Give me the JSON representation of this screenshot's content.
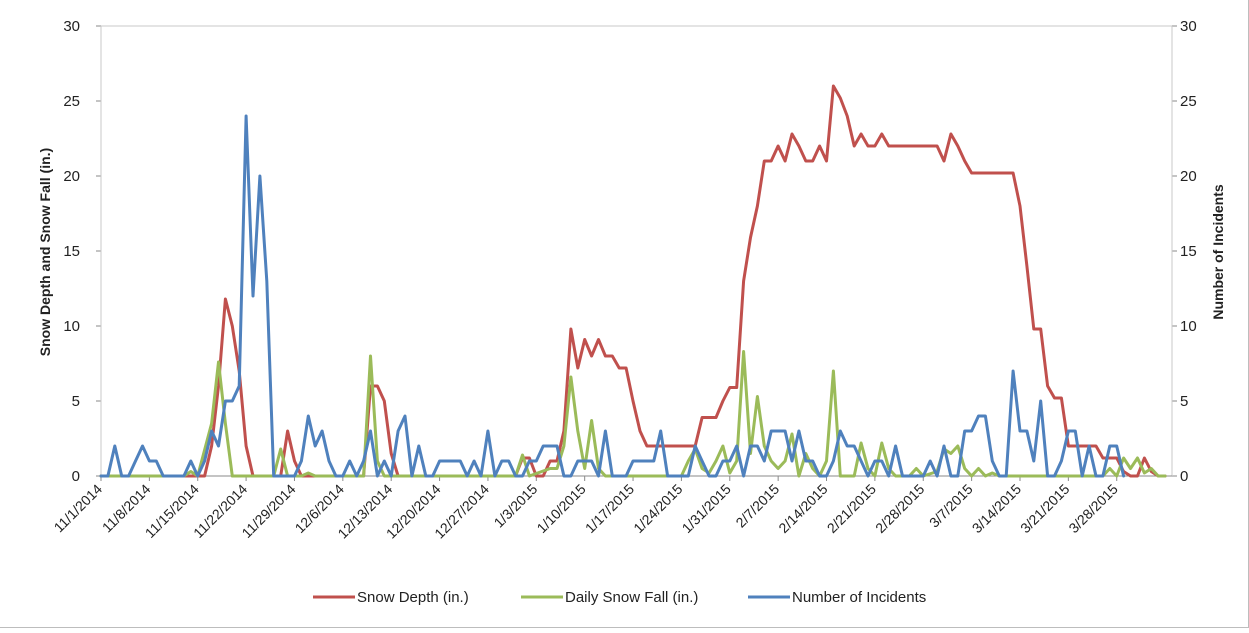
{
  "chart_data": {
    "type": "line",
    "title": "",
    "ylabel_left": "Snow Depth and Snow Fall (in.)",
    "ylabel_right": "Number of Incidents",
    "ylim_left": [
      0,
      30
    ],
    "ylim_right": [
      0,
      30
    ],
    "y_ticks_left": [
      "0",
      "5",
      "10",
      "15",
      "20",
      "25",
      "30"
    ],
    "y_ticks_right": [
      "0",
      "5",
      "10",
      "15",
      "20",
      "25",
      "30"
    ],
    "x_tick_labels": [
      "11/1/2014",
      "11/8/2014",
      "11/15/2014",
      "11/22/2014",
      "11/29/2014",
      "12/6/2014",
      "12/13/2014",
      "12/20/2014",
      "12/27/2014",
      "1/3/2015",
      "1/10/2015",
      "1/17/2015",
      "1/24/2015",
      "1/31/2015",
      "2/7/2015",
      "2/14/2015",
      "2/21/2015",
      "2/28/2015",
      "3/7/2015",
      "3/14/2015",
      "3/21/2015",
      "3/28/2015"
    ],
    "legend_position": "bottom",
    "grid": false,
    "series": [
      {
        "name": "Snow Depth (in.)",
        "axis": "left",
        "color": "#c0504d",
        "points": [
          [
            0,
            0
          ],
          [
            15,
            0
          ],
          [
            16,
            2
          ],
          [
            17,
            6
          ],
          [
            18,
            11.8
          ],
          [
            19,
            10
          ],
          [
            20,
            7
          ],
          [
            21,
            2
          ],
          [
            22,
            0
          ],
          [
            26,
            0
          ],
          [
            27,
            3
          ],
          [
            28,
            1
          ],
          [
            29,
            0
          ],
          [
            38,
            0
          ],
          [
            39,
            6
          ],
          [
            40,
            6
          ],
          [
            41,
            5
          ],
          [
            42,
            1.5
          ],
          [
            43,
            0
          ],
          [
            60,
            0
          ],
          [
            61,
            1.2
          ],
          [
            62,
            1.2
          ],
          [
            63,
            0
          ],
          [
            64,
            0
          ],
          [
            65,
            1
          ],
          [
            66,
            1
          ],
          [
            67,
            3
          ],
          [
            68,
            9.8
          ],
          [
            69,
            7.2
          ],
          [
            70,
            9.1
          ],
          [
            71,
            8
          ],
          [
            72,
            9.1
          ],
          [
            73,
            8
          ],
          [
            74,
            8
          ],
          [
            75,
            7.2
          ],
          [
            76,
            7.2
          ],
          [
            77,
            5
          ],
          [
            78,
            3
          ],
          [
            79,
            2
          ],
          [
            86,
            2
          ],
          [
            87,
            3.9
          ],
          [
            88,
            3.9
          ],
          [
            89,
            3.9
          ],
          [
            90,
            5
          ],
          [
            91,
            5.9
          ],
          [
            92,
            5.9
          ],
          [
            93,
            13
          ],
          [
            94,
            15.9
          ],
          [
            95,
            18
          ],
          [
            96,
            21
          ],
          [
            97,
            21
          ],
          [
            98,
            22
          ],
          [
            99,
            21
          ],
          [
            100,
            22.8
          ],
          [
            101,
            22
          ],
          [
            102,
            21
          ],
          [
            103,
            21
          ],
          [
            104,
            22
          ],
          [
            105,
            21
          ],
          [
            106,
            26
          ],
          [
            107,
            25.2
          ],
          [
            108,
            24
          ],
          [
            109,
            22
          ],
          [
            110,
            22.8
          ],
          [
            111,
            22
          ],
          [
            112,
            22
          ],
          [
            113,
            22.8
          ],
          [
            114,
            22
          ],
          [
            121,
            22
          ],
          [
            122,
            21
          ],
          [
            123,
            22.8
          ],
          [
            124,
            22
          ],
          [
            125,
            21
          ],
          [
            126,
            20.2
          ],
          [
            132,
            20.2
          ],
          [
            133,
            18
          ],
          [
            134,
            14
          ],
          [
            135,
            9.8
          ],
          [
            136,
            9.8
          ],
          [
            137,
            6
          ],
          [
            138,
            5.2
          ],
          [
            139,
            5.2
          ],
          [
            140,
            2
          ],
          [
            141,
            2
          ],
          [
            142,
            2
          ],
          [
            143,
            2
          ],
          [
            144,
            2
          ],
          [
            145,
            1.2
          ],
          [
            146,
            1.2
          ],
          [
            147,
            1.2
          ],
          [
            148,
            0.3
          ],
          [
            149,
            0
          ],
          [
            150,
            0
          ],
          [
            151,
            1.2
          ],
          [
            152,
            0.3
          ],
          [
            153,
            0
          ],
          [
            154,
            0
          ]
        ]
      },
      {
        "name": "Daily Snow Fall (in.)",
        "axis": "left",
        "color": "#9bbb59",
        "points": [
          [
            0,
            0
          ],
          [
            12,
            0
          ],
          [
            13,
            0.3
          ],
          [
            14,
            0
          ],
          [
            16,
            3.5
          ],
          [
            17,
            7.6
          ],
          [
            18,
            3.5
          ],
          [
            19,
            0
          ],
          [
            25,
            0
          ],
          [
            26,
            1.8
          ],
          [
            27,
            0
          ],
          [
            29,
            0
          ],
          [
            30,
            0.2
          ],
          [
            31,
            0
          ],
          [
            38,
            0
          ],
          [
            39,
            8
          ],
          [
            40,
            1
          ],
          [
            41,
            0
          ],
          [
            60,
            0
          ],
          [
            61,
            1.4
          ],
          [
            62,
            0
          ],
          [
            65,
            0.5
          ],
          [
            66,
            0.5
          ],
          [
            67,
            2
          ],
          [
            68,
            6.6
          ],
          [
            69,
            3
          ],
          [
            70,
            0.5
          ],
          [
            71,
            3.7
          ],
          [
            72,
            0.5
          ],
          [
            73,
            0
          ],
          [
            84,
            0
          ],
          [
            85,
            1
          ],
          [
            86,
            1.8
          ],
          [
            87,
            0.5
          ],
          [
            88,
            0.2
          ],
          [
            89,
            1
          ],
          [
            90,
            2
          ],
          [
            91,
            0.2
          ],
          [
            92,
            1
          ],
          [
            93,
            8.3
          ],
          [
            94,
            1.5
          ],
          [
            95,
            5.3
          ],
          [
            96,
            2
          ],
          [
            97,
            1
          ],
          [
            98,
            0.5
          ],
          [
            99,
            1
          ],
          [
            100,
            2.8
          ],
          [
            101,
            0
          ],
          [
            102,
            1.5
          ],
          [
            103,
            0.5
          ],
          [
            104,
            0
          ],
          [
            105,
            1
          ],
          [
            106,
            7
          ],
          [
            107,
            0
          ],
          [
            109,
            0
          ],
          [
            110,
            2.2
          ],
          [
            111,
            0.5
          ],
          [
            112,
            0
          ],
          [
            113,
            2.2
          ],
          [
            114,
            0.5
          ],
          [
            115,
            0
          ],
          [
            117,
            0
          ],
          [
            118,
            0.5
          ],
          [
            119,
            0
          ],
          [
            121,
            0.3
          ],
          [
            122,
            1.8
          ],
          [
            123,
            1.5
          ],
          [
            124,
            2
          ],
          [
            125,
            0.5
          ],
          [
            126,
            0
          ],
          [
            127,
            0.5
          ],
          [
            128,
            0
          ],
          [
            129,
            0.2
          ],
          [
            130,
            0
          ],
          [
            145,
            0
          ],
          [
            146,
            0.5
          ],
          [
            147,
            0
          ],
          [
            148,
            1.2
          ],
          [
            149,
            0.5
          ],
          [
            150,
            1.2
          ],
          [
            151,
            0.2
          ],
          [
            152,
            0.5
          ],
          [
            153,
            0
          ],
          [
            154,
            0
          ]
        ]
      },
      {
        "name": "Number of Incidents",
        "axis": "right",
        "color": "#4f81bd",
        "points": [
          [
            0,
            0
          ],
          [
            1,
            0
          ],
          [
            2,
            2
          ],
          [
            3,
            0
          ],
          [
            4,
            0
          ],
          [
            5,
            1
          ],
          [
            6,
            2
          ],
          [
            7,
            1
          ],
          [
            8,
            1
          ],
          [
            9,
            0
          ],
          [
            10,
            0
          ],
          [
            11,
            0
          ],
          [
            12,
            0
          ],
          [
            13,
            1
          ],
          [
            14,
            0
          ],
          [
            15,
            1
          ],
          [
            16,
            3
          ],
          [
            17,
            2
          ],
          [
            18,
            5
          ],
          [
            19,
            5
          ],
          [
            20,
            6
          ],
          [
            21,
            24
          ],
          [
            22,
            12
          ],
          [
            23,
            20
          ],
          [
            24,
            13
          ],
          [
            25,
            0
          ],
          [
            26,
            0
          ],
          [
            27,
            0
          ],
          [
            28,
            0
          ],
          [
            29,
            1
          ],
          [
            30,
            4
          ],
          [
            31,
            2
          ],
          [
            32,
            3
          ],
          [
            33,
            1
          ],
          [
            34,
            0
          ],
          [
            35,
            0
          ],
          [
            36,
            1
          ],
          [
            37,
            0
          ],
          [
            38,
            1
          ],
          [
            39,
            3
          ],
          [
            40,
            0
          ],
          [
            41,
            1
          ],
          [
            42,
            0
          ],
          [
            43,
            3
          ],
          [
            44,
            4
          ],
          [
            45,
            0
          ],
          [
            46,
            2
          ],
          [
            47,
            0
          ],
          [
            48,
            0
          ],
          [
            49,
            1
          ],
          [
            50,
            1
          ],
          [
            51,
            1
          ],
          [
            52,
            1
          ],
          [
            53,
            0
          ],
          [
            54,
            1
          ],
          [
            55,
            0
          ],
          [
            56,
            3
          ],
          [
            57,
            0
          ],
          [
            58,
            1
          ],
          [
            59,
            1
          ],
          [
            60,
            0
          ],
          [
            61,
            0
          ],
          [
            62,
            1
          ],
          [
            63,
            1
          ],
          [
            64,
            2
          ],
          [
            65,
            2
          ],
          [
            66,
            2
          ],
          [
            67,
            0
          ],
          [
            68,
            0
          ],
          [
            69,
            1
          ],
          [
            70,
            1
          ],
          [
            71,
            1
          ],
          [
            72,
            0
          ],
          [
            73,
            3
          ],
          [
            74,
            0
          ],
          [
            75,
            0
          ],
          [
            76,
            0
          ],
          [
            77,
            1
          ],
          [
            78,
            1
          ],
          [
            79,
            1
          ],
          [
            80,
            1
          ],
          [
            81,
            3
          ],
          [
            82,
            0
          ],
          [
            83,
            0
          ],
          [
            84,
            0
          ],
          [
            85,
            0
          ],
          [
            86,
            2
          ],
          [
            87,
            1
          ],
          [
            88,
            0
          ],
          [
            89,
            0
          ],
          [
            90,
            1
          ],
          [
            91,
            1
          ],
          [
            92,
            2
          ],
          [
            93,
            0
          ],
          [
            94,
            2
          ],
          [
            95,
            2
          ],
          [
            96,
            1
          ],
          [
            97,
            3
          ],
          [
            98,
            3
          ],
          [
            99,
            3
          ],
          [
            100,
            1
          ],
          [
            101,
            3
          ],
          [
            102,
            1
          ],
          [
            103,
            1
          ],
          [
            104,
            0
          ],
          [
            105,
            0
          ],
          [
            106,
            1
          ],
          [
            107,
            3
          ],
          [
            108,
            2
          ],
          [
            109,
            2
          ],
          [
            110,
            1
          ],
          [
            111,
            0
          ],
          [
            112,
            1
          ],
          [
            113,
            1
          ],
          [
            114,
            0
          ],
          [
            115,
            2
          ],
          [
            116,
            0
          ],
          [
            117,
            0
          ],
          [
            118,
            0
          ],
          [
            119,
            0
          ],
          [
            120,
            1
          ],
          [
            121,
            0
          ],
          [
            122,
            2
          ],
          [
            123,
            0
          ],
          [
            124,
            0
          ],
          [
            125,
            3
          ],
          [
            126,
            3
          ],
          [
            127,
            4
          ],
          [
            128,
            4
          ],
          [
            129,
            1
          ],
          [
            130,
            0
          ],
          [
            131,
            0
          ],
          [
            132,
            7
          ],
          [
            133,
            3
          ],
          [
            134,
            3
          ],
          [
            135,
            1
          ],
          [
            136,
            5
          ],
          [
            137,
            0
          ],
          [
            138,
            0
          ],
          [
            139,
            1
          ],
          [
            140,
            3
          ],
          [
            141,
            3
          ],
          [
            142,
            0
          ],
          [
            143,
            2
          ],
          [
            144,
            0
          ],
          [
            145,
            0
          ],
          [
            146,
            2
          ],
          [
            147,
            2
          ],
          [
            148,
            0
          ]
        ]
      }
    ]
  }
}
